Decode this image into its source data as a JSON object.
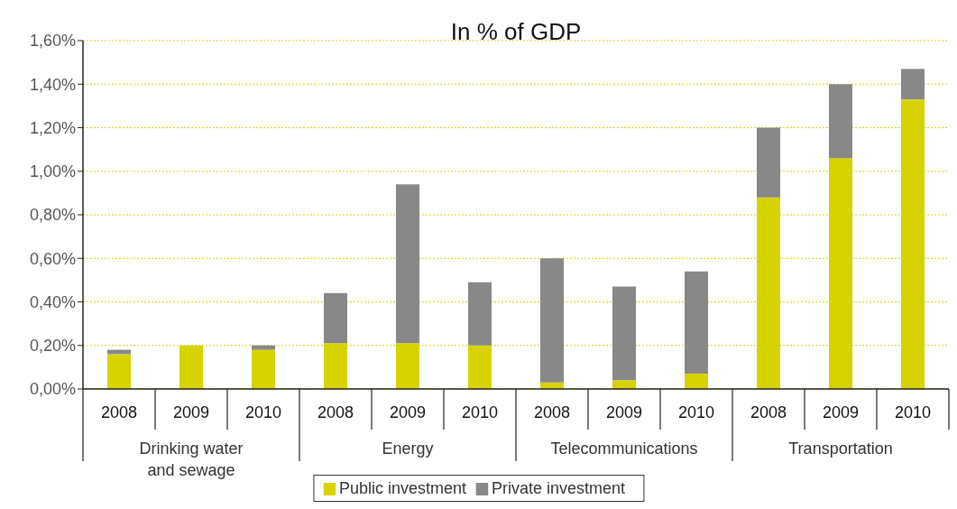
{
  "chart_data": {
    "type": "bar",
    "title": "In % of GDP",
    "stacked": true,
    "categories": [
      "2008",
      "2009",
      "2010",
      "2008",
      "2009",
      "2010",
      "2008",
      "2009",
      "2010",
      "2008",
      "2009",
      "2010"
    ],
    "annotations": [
      "Drinking water\nand sewage",
      "Energy",
      "Telecommunications",
      "Transportation"
    ],
    "series": [
      {
        "name": "Public investment",
        "color": "#d6d300",
        "values": [
          0.16,
          0.2,
          0.18,
          0.21,
          0.21,
          0.2,
          0.03,
          0.04,
          0.07,
          0.88,
          1.06,
          1.33
        ]
      },
      {
        "name": "Private investment",
        "color": "#888888",
        "values": [
          0.02,
          0,
          0.02,
          0.23,
          0.73,
          0.29,
          0.57,
          0.43,
          0.47,
          0.32,
          0.34,
          0.14
        ]
      }
    ],
    "ylim": [
      0,
      1.6
    ],
    "yticks": [
      {
        "value": 0,
        "label": "0,00%"
      },
      {
        "value": 0.2,
        "label": "0,20%"
      },
      {
        "value": 0.4,
        "label": "0,40%"
      },
      {
        "value": 0.6,
        "label": "0,60%"
      },
      {
        "value": 0.8,
        "label": "0,80%"
      },
      {
        "value": 1,
        "label": "1,00%"
      },
      {
        "value": 1.2,
        "label": "1,20%"
      },
      {
        "value": 1.4,
        "label": "1,40%"
      },
      {
        "value": 1.6,
        "label": "1,60%"
      }
    ],
    "grid": "y",
    "legend": "bottom"
  }
}
